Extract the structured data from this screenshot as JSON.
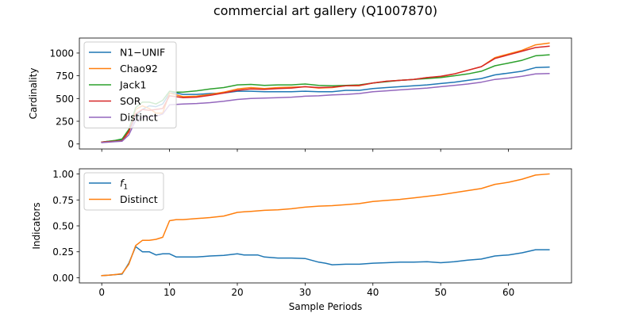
{
  "title": "commercial art gallery (Q1007870)",
  "chart_data": [
    {
      "type": "line",
      "ylabel": "Cardinality",
      "xlabel": "",
      "xlim": [
        -3.3,
        69.3
      ],
      "ylim": [
        -55,
        1165
      ],
      "xticks": [
        0,
        10,
        20,
        30,
        40,
        50,
        60
      ],
      "yticks": [
        0,
        250,
        500,
        750,
        1000
      ],
      "ytick_labels": [
        "0",
        "250",
        "500",
        "750",
        "1000"
      ],
      "legend_position": "upper left",
      "series": [
        {
          "name": "N1−UNIF",
          "color": "#1f77b4",
          "x": [
            0,
            1,
            2,
            3,
            4,
            5,
            6,
            7,
            8,
            9,
            10,
            11,
            12,
            14,
            16,
            18,
            20,
            22,
            24,
            26,
            28,
            30,
            32,
            34,
            36,
            38,
            40,
            42,
            44,
            46,
            48,
            50,
            52,
            54,
            56,
            58,
            60,
            62,
            64,
            66
          ],
          "y": [
            20,
            30,
            35,
            45,
            140,
            300,
            380,
            420,
            410,
            440,
            560,
            560,
            545,
            545,
            555,
            560,
            580,
            580,
            575,
            575,
            575,
            580,
            575,
            575,
            590,
            590,
            610,
            620,
            630,
            640,
            650,
            665,
            680,
            700,
            720,
            760,
            780,
            800,
            840,
            845
          ]
        },
        {
          "name": "Chao92",
          "color": "#ff7f0e",
          "x": [
            0,
            1,
            2,
            3,
            4,
            5,
            6,
            7,
            8,
            9,
            10,
            11,
            12,
            14,
            16,
            18,
            20,
            22,
            24,
            26,
            28,
            30,
            32,
            34,
            36,
            38,
            40,
            42,
            44,
            46,
            48,
            50,
            52,
            54,
            56,
            58,
            60,
            62,
            64,
            66
          ],
          "y": [
            20,
            25,
            30,
            35,
            130,
            380,
            420,
            390,
            340,
            340,
            560,
            540,
            520,
            525,
            545,
            570,
            605,
            620,
            610,
            620,
            625,
            630,
            615,
            620,
            640,
            640,
            670,
            690,
            700,
            710,
            730,
            740,
            770,
            810,
            850,
            950,
            990,
            1030,
            1090,
            1110
          ]
        },
        {
          "name": "Jack1",
          "color": "#2ca02c",
          "x": [
            0,
            1,
            2,
            3,
            4,
            5,
            6,
            7,
            8,
            9,
            10,
            11,
            12,
            14,
            16,
            18,
            20,
            22,
            24,
            26,
            28,
            30,
            32,
            34,
            36,
            38,
            40,
            42,
            44,
            46,
            48,
            50,
            52,
            54,
            56,
            58,
            60,
            62,
            64,
            66
          ],
          "y": [
            20,
            30,
            40,
            55,
            160,
            400,
            460,
            460,
            440,
            480,
            580,
            570,
            570,
            585,
            605,
            620,
            650,
            655,
            645,
            650,
            650,
            660,
            645,
            640,
            645,
            650,
            670,
            685,
            700,
            710,
            720,
            730,
            750,
            770,
            800,
            860,
            890,
            920,
            970,
            980
          ]
        },
        {
          "name": "SOR",
          "color": "#d62728",
          "x": [
            0,
            1,
            2,
            3,
            4,
            5,
            6,
            7,
            8,
            9,
            10,
            11,
            12,
            14,
            16,
            18,
            20,
            22,
            24,
            26,
            28,
            30,
            32,
            34,
            36,
            38,
            40,
            42,
            44,
            46,
            48,
            50,
            52,
            54,
            56,
            58,
            60,
            62,
            64,
            66
          ],
          "y": [
            20,
            25,
            30,
            35,
            140,
            330,
            380,
            370,
            380,
            390,
            530,
            520,
            510,
            515,
            535,
            560,
            590,
            605,
            600,
            610,
            615,
            630,
            620,
            625,
            640,
            645,
            670,
            690,
            700,
            710,
            730,
            745,
            770,
            810,
            850,
            940,
            980,
            1020,
            1060,
            1075
          ]
        },
        {
          "name": "Distinct",
          "color": "#9467bd",
          "x": [
            0,
            1,
            2,
            3,
            4,
            5,
            6,
            7,
            8,
            9,
            10,
            11,
            12,
            14,
            16,
            18,
            20,
            22,
            24,
            26,
            28,
            30,
            32,
            34,
            36,
            38,
            40,
            42,
            44,
            46,
            48,
            50,
            52,
            54,
            56,
            58,
            60,
            62,
            64,
            66
          ],
          "y": [
            15,
            20,
            25,
            30,
            100,
            260,
            290,
            300,
            305,
            330,
            430,
            435,
            440,
            445,
            455,
            470,
            490,
            500,
            505,
            510,
            515,
            525,
            530,
            540,
            545,
            555,
            575,
            585,
            595,
            605,
            615,
            630,
            645,
            660,
            680,
            710,
            725,
            745,
            770,
            775
          ]
        }
      ]
    },
    {
      "type": "line",
      "ylabel": "Indicators",
      "xlabel": "Sample Periods",
      "xlim": [
        -3.3,
        69.3
      ],
      "ylim": [
        -0.05,
        1.05
      ],
      "xticks": [
        0,
        10,
        20,
        30,
        40,
        50,
        60
      ],
      "yticks": [
        0.0,
        0.25,
        0.5,
        0.75,
        1.0
      ],
      "ytick_labels": [
        "0.00",
        "0.25",
        "0.50",
        "0.75",
        "1.00"
      ],
      "legend_position": "upper left",
      "series": [
        {
          "name": "f",
          "name_subscript": "1",
          "color": "#1f77b4",
          "x": [
            0,
            1,
            2,
            3,
            4,
            5,
            6,
            7,
            8,
            9,
            10,
            11,
            12,
            14,
            16,
            18,
            20,
            21,
            22,
            23,
            24,
            26,
            28,
            30,
            32,
            33,
            34,
            36,
            38,
            40,
            42,
            44,
            46,
            48,
            50,
            52,
            54,
            56,
            58,
            60,
            62,
            64,
            66
          ],
          "y": [
            0.02,
            0.025,
            0.03,
            0.035,
            0.14,
            0.3,
            0.25,
            0.25,
            0.22,
            0.23,
            0.23,
            0.2,
            0.2,
            0.2,
            0.21,
            0.215,
            0.23,
            0.22,
            0.22,
            0.22,
            0.2,
            0.19,
            0.19,
            0.185,
            0.15,
            0.14,
            0.125,
            0.13,
            0.13,
            0.14,
            0.145,
            0.15,
            0.15,
            0.155,
            0.145,
            0.155,
            0.17,
            0.18,
            0.21,
            0.22,
            0.24,
            0.27,
            0.27
          ]
        },
        {
          "name": "Distinct",
          "color": "#ff7f0e",
          "x": [
            0,
            1,
            2,
            3,
            4,
            5,
            6,
            7,
            8,
            9,
            10,
            11,
            12,
            14,
            16,
            18,
            20,
            21,
            22,
            24,
            26,
            28,
            30,
            32,
            34,
            36,
            38,
            40,
            42,
            44,
            46,
            48,
            50,
            52,
            54,
            56,
            58,
            60,
            62,
            64,
            66
          ],
          "y": [
            0.02,
            0.025,
            0.03,
            0.04,
            0.13,
            0.31,
            0.36,
            0.36,
            0.37,
            0.39,
            0.55,
            0.56,
            0.56,
            0.57,
            0.58,
            0.595,
            0.63,
            0.635,
            0.64,
            0.65,
            0.655,
            0.665,
            0.68,
            0.69,
            0.695,
            0.705,
            0.715,
            0.735,
            0.745,
            0.755,
            0.77,
            0.785,
            0.8,
            0.82,
            0.84,
            0.86,
            0.9,
            0.92,
            0.95,
            0.99,
            1.0
          ]
        }
      ]
    }
  ]
}
